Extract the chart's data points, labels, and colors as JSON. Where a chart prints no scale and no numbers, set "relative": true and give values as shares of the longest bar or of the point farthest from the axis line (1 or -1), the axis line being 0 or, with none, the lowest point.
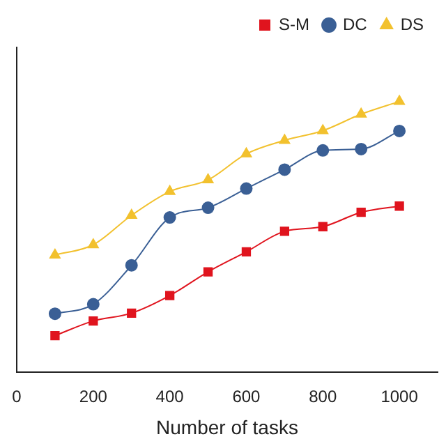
{
  "chart_data": {
    "type": "line",
    "xlabel": "Number of tasks",
    "x": [
      100,
      200,
      300,
      400,
      500,
      600,
      700,
      800,
      900,
      1000
    ],
    "relative": true,
    "xlim": [
      0,
      1100
    ],
    "xticks": [
      0,
      200,
      400,
      600,
      800,
      1000
    ],
    "legend": "top right",
    "grid": false,
    "series": [
      {
        "name": "S-M",
        "color": "#e0141e",
        "marker": "square",
        "values": [
          0.134,
          0.188,
          0.217,
          0.282,
          0.37,
          0.444,
          0.52,
          0.537,
          0.59,
          0.613
        ]
      },
      {
        "name": "DC",
        "color": "#3a5f95",
        "marker": "circle",
        "values": [
          0.215,
          0.25,
          0.394,
          0.571,
          0.607,
          0.678,
          0.748,
          0.819,
          0.824,
          0.891
        ]
      },
      {
        "name": "DS",
        "color": "#f2c12e",
        "marker": "triangle",
        "values": [
          0.432,
          0.47,
          0.579,
          0.667,
          0.71,
          0.806,
          0.856,
          0.892,
          0.953,
          1
        ]
      }
    ]
  }
}
